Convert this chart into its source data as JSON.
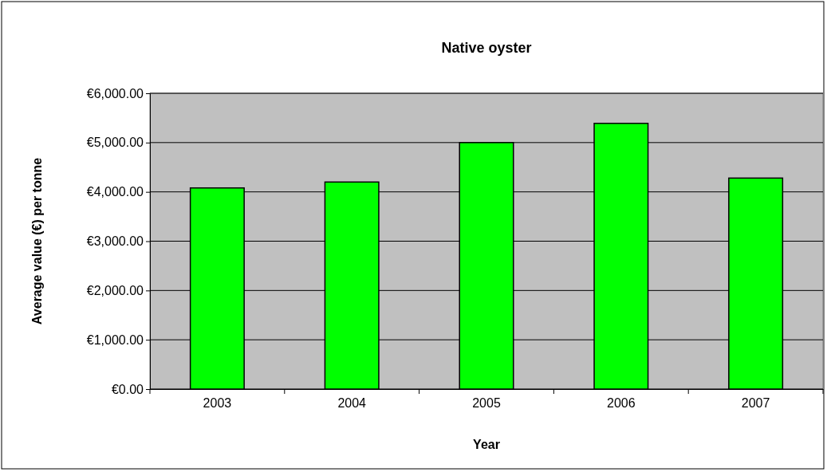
{
  "chart_data": {
    "type": "bar",
    "title": "Native oyster",
    "xlabel": "Year",
    "ylabel": "Average value (€) per tonne",
    "categories": [
      "2003",
      "2004",
      "2005",
      "2006",
      "2007"
    ],
    "values": [
      4080,
      4200,
      5000,
      5390,
      4280
    ],
    "color": "#00ff00",
    "ylim": [
      0,
      6000
    ],
    "yticks": [
      {
        "value": 0,
        "label": "€0.00"
      },
      {
        "value": 1000,
        "label": "€1,000.00"
      },
      {
        "value": 2000,
        "label": "€2,000.00"
      },
      {
        "value": 3000,
        "label": "€3,000.00"
      },
      {
        "value": 4000,
        "label": "€4,000.00"
      },
      {
        "value": 5000,
        "label": "€5,000.00"
      },
      {
        "value": 6000,
        "label": "€6,000.00"
      }
    ],
    "grid": "y"
  }
}
